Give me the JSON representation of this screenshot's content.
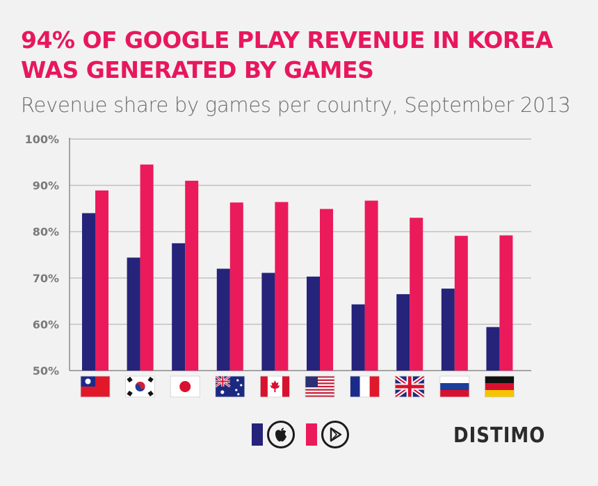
{
  "title": "94% OF GOOGLE PLAY REVENUE IN KOREA WAS GENERATED BY GAMES",
  "subtitle": "Revenue share by games per country, September 2013",
  "brand": "DISTIMO",
  "colors": {
    "title": "#e8175d",
    "apple": "#26237a",
    "google": "#eb1a5b",
    "subtitle": "#6d6d6d"
  },
  "legend": [
    {
      "name": "",
      "icon": "apple-icon",
      "color": "#26237a"
    },
    {
      "name": "",
      "icon": "google-play-icon",
      "color": "#eb1a5b"
    }
  ],
  "chart_data": {
    "type": "bar",
    "title": "94% OF GOOGLE PLAY REVENUE IN KOREA WAS GENERATED BY GAMES",
    "subtitle": "Revenue share by games per country, September 2013",
    "xlabel": "",
    "ylabel": "",
    "ylim": [
      50,
      100
    ],
    "yticks": [
      50,
      60,
      70,
      80,
      90,
      100
    ],
    "ytick_labels": [
      "50%",
      "60%",
      "70%",
      "80%",
      "90%",
      "100%"
    ],
    "grid": true,
    "categories": [
      "taiwan-flag",
      "south-korea-flag",
      "japan-flag",
      "australia-flag",
      "canada-flag",
      "united-states-flag",
      "france-flag",
      "united-kingdom-flag",
      "russia-flag",
      "germany-flag"
    ],
    "series": [
      {
        "color": "#26237a",
        "icon": "apple-icon",
        "values": [
          84,
          74.4,
          77.5,
          72,
          71.1,
          70.3,
          64.3,
          66.5,
          67.7,
          59.4
        ]
      },
      {
        "color": "#eb1a5b",
        "icon": "google-play-icon",
        "values": [
          88.9,
          94.5,
          91,
          86.3,
          86.4,
          84.9,
          86.7,
          83,
          79.1,
          79.2
        ]
      }
    ]
  }
}
